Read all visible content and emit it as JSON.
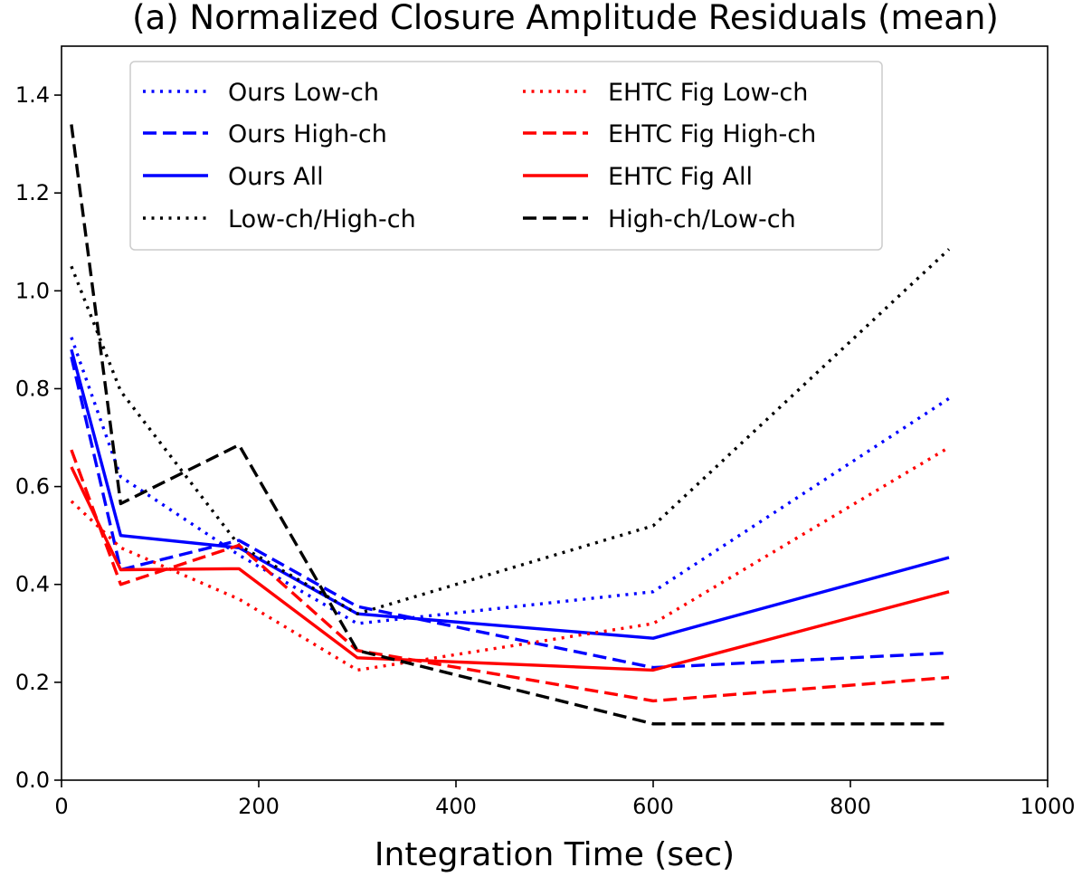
{
  "chart_data": {
    "type": "line",
    "title": "(a) Normalized Closure Amplitude Residuals (mean)",
    "xlabel": "Integration Time (sec)",
    "ylabel": "",
    "xlim": [
      0,
      1000
    ],
    "ylim": [
      0,
      1.5
    ],
    "xticks": [
      0,
      200,
      400,
      600,
      800,
      1000
    ],
    "yticks": [
      0.0,
      0.2,
      0.4,
      0.6,
      0.8,
      1.0,
      1.2,
      1.4
    ],
    "xtick_labels": [
      "0",
      "200",
      "400",
      "600",
      "800",
      "1000"
    ],
    "ytick_labels": [
      "0.0",
      "0.2",
      "0.4",
      "0.6",
      "0.8",
      "1.0",
      "1.2",
      "1.4"
    ],
    "grid": false,
    "legend_position": "top",
    "x": [
      10,
      60,
      180,
      300,
      600,
      900
    ],
    "series": [
      {
        "name": "Ours Low-ch",
        "color": "#0000ff",
        "style": "dotted",
        "values": [
          0.905,
          0.62,
          0.46,
          0.32,
          0.385,
          0.78
        ]
      },
      {
        "name": "Ours High-ch",
        "color": "#0000ff",
        "style": "dashed",
        "values": [
          0.865,
          0.43,
          0.49,
          0.355,
          0.23,
          0.26
        ]
      },
      {
        "name": "Ours All",
        "color": "#0000ff",
        "style": "solid",
        "values": [
          0.88,
          0.5,
          0.475,
          0.34,
          0.29,
          0.455
        ]
      },
      {
        "name": "Low-ch/High-ch",
        "color": "#000000",
        "style": "dotted",
        "values": [
          1.05,
          0.795,
          0.48,
          0.34,
          0.52,
          1.085
        ]
      },
      {
        "name": "EHTC Fig Low-ch",
        "color": "#ff0000",
        "style": "dotted",
        "values": [
          0.57,
          0.475,
          0.37,
          0.225,
          0.32,
          0.68
        ]
      },
      {
        "name": "EHTC Fig High-ch",
        "color": "#ff0000",
        "style": "dashed",
        "values": [
          0.675,
          0.4,
          0.48,
          0.265,
          0.162,
          0.21
        ]
      },
      {
        "name": "EHTC Fig All",
        "color": "#ff0000",
        "style": "solid",
        "values": [
          0.64,
          0.43,
          0.432,
          0.25,
          0.225,
          0.385
        ]
      },
      {
        "name": "High-ch/Low-ch",
        "color": "#000000",
        "style": "dashed",
        "values": [
          1.34,
          0.565,
          0.685,
          0.265,
          0.115,
          0.115
        ]
      }
    ]
  }
}
